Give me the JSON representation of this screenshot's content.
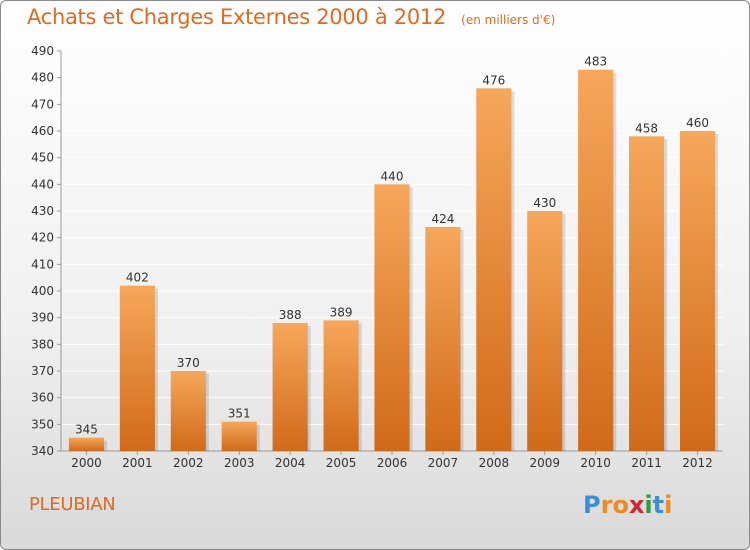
{
  "header": {
    "title": "Achats et Charges Externes 2000 à 2012",
    "units": "(en milliers d'€)"
  },
  "footer": {
    "commune": "PLEUBIAN",
    "logo_text": "Proxiti",
    "logo_letters": [
      "P",
      "r",
      "o",
      "x",
      "i",
      "t",
      "i"
    ],
    "logo_colors": [
      "#3a8fd6",
      "#f08a1c",
      "#f08a1c",
      "#d6262b",
      "#2e9d3a",
      "#3a8fd6",
      "#f08a1c"
    ]
  },
  "colors": {
    "accent": "#e06a1f",
    "bar_light": "#f6a75a",
    "bar_dark": "#d16a18",
    "grid": "#ffffff",
    "axis_text": "#333333"
  },
  "chart_data": {
    "type": "bar",
    "title": "Achats et Charges Externes 2000 à 2012",
    "subtitle": "(en milliers d'€)",
    "categories": [
      "2000",
      "2001",
      "2002",
      "2003",
      "2004",
      "2005",
      "2006",
      "2007",
      "2008",
      "2009",
      "2010",
      "2011",
      "2012"
    ],
    "values": [
      345,
      402,
      370,
      351,
      388,
      389,
      440,
      424,
      476,
      430,
      483,
      458,
      460
    ],
    "ylim": [
      340,
      490
    ],
    "yticks": [
      340,
      350,
      360,
      370,
      380,
      390,
      400,
      410,
      420,
      430,
      440,
      450,
      460,
      470,
      480,
      490
    ],
    "xlabel": "",
    "ylabel": "",
    "grid": true,
    "data_labels": true
  }
}
